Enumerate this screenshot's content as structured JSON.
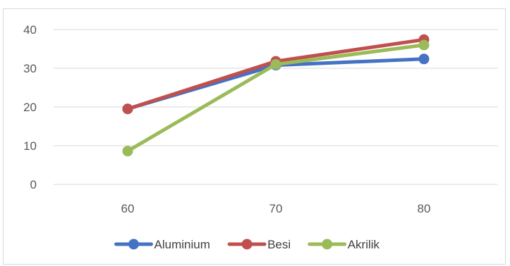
{
  "chart_data": {
    "type": "line",
    "categories": [
      "60",
      "70",
      "80"
    ],
    "x": [
      60,
      70,
      80
    ],
    "series": [
      {
        "name": "Aluminium",
        "values": [
          19.5,
          30.8,
          32.4
        ],
        "color": "#4472c4"
      },
      {
        "name": "Besi",
        "values": [
          19.5,
          31.8,
          37.4
        ],
        "color": "#c0504d"
      },
      {
        "name": "Akrilik",
        "values": [
          8.6,
          31.0,
          36.0
        ],
        "color": "#9bbb59"
      }
    ],
    "y_ticks": [
      "0",
      "10",
      "20",
      "30",
      "40"
    ],
    "ylim": [
      0,
      40
    ],
    "grid": true,
    "legend_position": "bottom",
    "title": "",
    "xlabel": "",
    "ylabel": ""
  }
}
